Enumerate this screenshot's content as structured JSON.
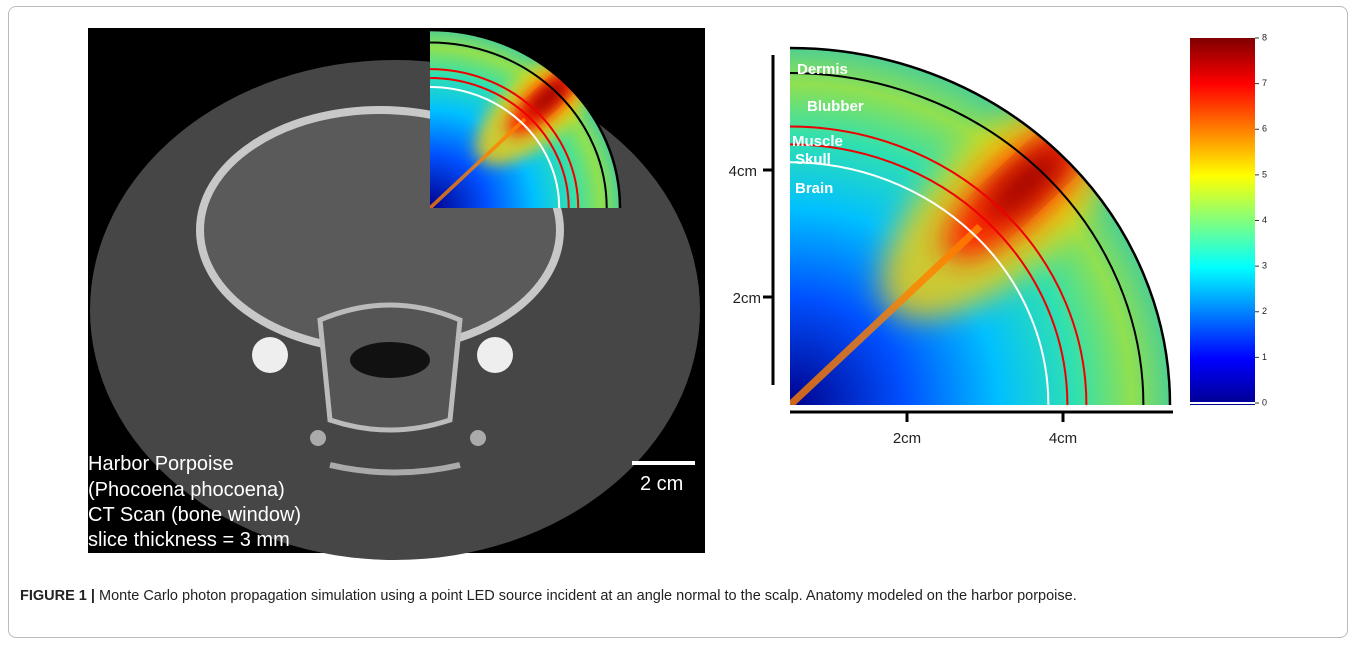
{
  "figure": {
    "ct_image": {
      "labels": [
        "Harbor Porpoise",
        "(Phocoena phocoena)",
        "CT Scan (bone window)",
        "slice thickness = 3 mm"
      ],
      "scale_bar": "2 cm"
    },
    "simulation": {
      "layers": [
        "Dermis",
        "Blubber",
        "Muscle",
        "Skull",
        "Brain"
      ],
      "y_axis_ticks": [
        "4cm",
        "2cm"
      ],
      "x_axis_ticks": [
        "2cm",
        "4cm"
      ],
      "colorbar": {
        "range": [
          0,
          8
        ],
        "ticks": [
          0,
          1,
          2,
          3,
          4,
          5,
          6,
          7,
          8
        ]
      }
    }
  },
  "caption": {
    "label": "FIGURE 1 |",
    "text": "Monte Carlo photon propagation simulation using a point LED source incident at an angle normal to the scalp. Anatomy modeled on the harbor porpoise."
  }
}
